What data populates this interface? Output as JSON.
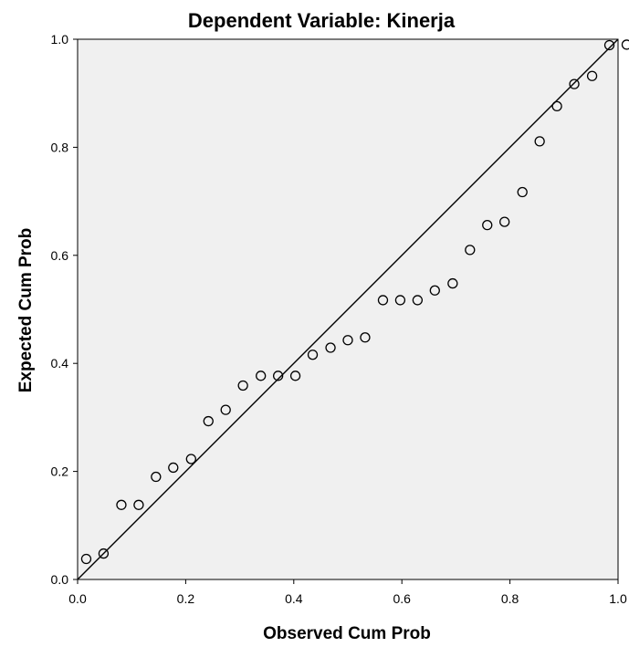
{
  "chart_data": {
    "type": "scatter",
    "title": "Dependent Variable: Kinerja",
    "xlabel": "Observed Cum Prob",
    "ylabel": "Expected Cum Prob",
    "xlim": [
      0.0,
      1.0
    ],
    "ylim": [
      0.0,
      1.0
    ],
    "x_ticks": [
      "0.0",
      "0.2",
      "0.4",
      "0.6",
      "0.8",
      "1.0"
    ],
    "y_ticks": [
      "0.0",
      "0.2",
      "0.4",
      "0.6",
      "0.8",
      "1.0"
    ],
    "grid": false,
    "reference_line": {
      "from": [
        0,
        0
      ],
      "to": [
        1,
        1
      ]
    },
    "plot_background": "#f0f0f0",
    "marker_color": "#000000",
    "points": [
      {
        "x": 0.016,
        "y": 0.038
      },
      {
        "x": 0.048,
        "y": 0.048
      },
      {
        "x": 0.081,
        "y": 0.138
      },
      {
        "x": 0.113,
        "y": 0.138
      },
      {
        "x": 0.145,
        "y": 0.19
      },
      {
        "x": 0.177,
        "y": 0.207
      },
      {
        "x": 0.21,
        "y": 0.223
      },
      {
        "x": 0.242,
        "y": 0.293
      },
      {
        "x": 0.274,
        "y": 0.314
      },
      {
        "x": 0.306,
        "y": 0.359
      },
      {
        "x": 0.339,
        "y": 0.377
      },
      {
        "x": 0.371,
        "y": 0.377
      },
      {
        "x": 0.403,
        "y": 0.377
      },
      {
        "x": 0.435,
        "y": 0.416
      },
      {
        "x": 0.468,
        "y": 0.429
      },
      {
        "x": 0.5,
        "y": 0.443
      },
      {
        "x": 0.532,
        "y": 0.448
      },
      {
        "x": 0.565,
        "y": 0.517
      },
      {
        "x": 0.597,
        "y": 0.517
      },
      {
        "x": 0.629,
        "y": 0.517
      },
      {
        "x": 0.661,
        "y": 0.535
      },
      {
        "x": 0.694,
        "y": 0.548
      },
      {
        "x": 0.726,
        "y": 0.61
      },
      {
        "x": 0.758,
        "y": 0.656
      },
      {
        "x": 0.79,
        "y": 0.662
      },
      {
        "x": 0.823,
        "y": 0.717
      },
      {
        "x": 0.855,
        "y": 0.811
      },
      {
        "x": 0.887,
        "y": 0.876
      },
      {
        "x": 0.919,
        "y": 0.917
      },
      {
        "x": 0.952,
        "y": 0.932
      },
      {
        "x": 0.984,
        "y": 0.989
      },
      {
        "x": 1.016,
        "y": 0.99
      }
    ]
  }
}
